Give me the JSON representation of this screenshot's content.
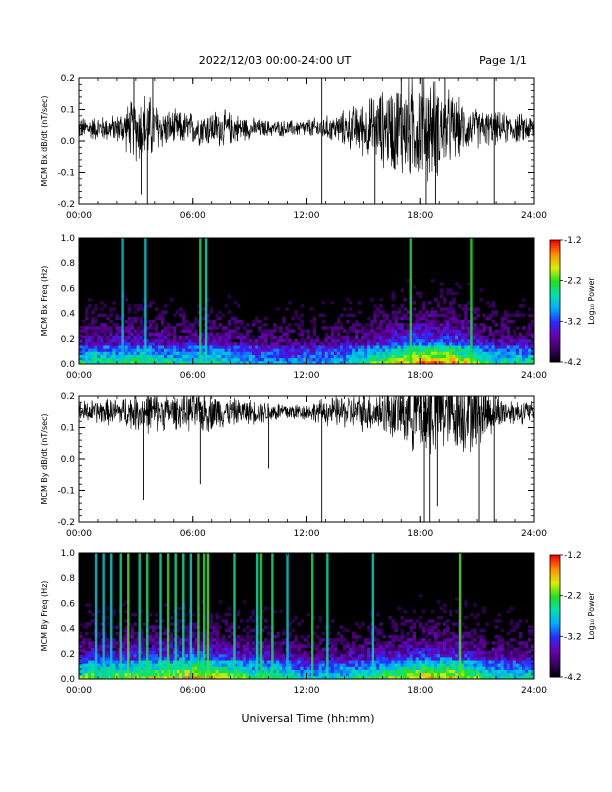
{
  "header": {
    "title": "2022/12/03  00:00-24:00 UT",
    "page": "Page 1/1"
  },
  "footer": {
    "xlabel": "Universal Time (hh:mm)"
  },
  "colors": {
    "trace": "#000000",
    "background": "#000000",
    "colormap": [
      "#000000",
      "#3a0060",
      "#6a00b0",
      "#2a2aff",
      "#00aaff",
      "#00e0b0",
      "#20e020",
      "#d8f000",
      "#ff9000",
      "#ff0000"
    ]
  },
  "chart_data": [
    {
      "type": "line",
      "id": "bx-dbdt",
      "ylabel": "MCM Bx dB/dt (nT/sec)",
      "xlim": [
        0,
        24
      ],
      "ylim": [
        -0.2,
        0.2
      ],
      "x_ticks": [
        0,
        6,
        12,
        18,
        24
      ],
      "x_tick_labels": [
        "00:00",
        "06:00",
        "12:00",
        "18:00",
        "24:00"
      ],
      "y_ticks": [
        -0.2,
        -0.1,
        0.0,
        0.1,
        0.2
      ],
      "y_tick_labels": [
        "-0.2",
        "-0.1",
        "0.0",
        "0.1",
        "0.2"
      ],
      "grid": false,
      "series": [
        {
          "baseline": 0.04,
          "envelope_hours": [
            0,
            2,
            3,
            3.5,
            4.5,
            6,
            7.5,
            9,
            10,
            11.5,
            12.5,
            13.5,
            15,
            16,
            17.2,
            18.5,
            19.5,
            20.5,
            22,
            24
          ],
          "envelope_amplitude": [
            0.04,
            0.05,
            0.12,
            0.14,
            0.07,
            0.06,
            0.07,
            0.04,
            0.03,
            0.03,
            0.04,
            0.05,
            0.1,
            0.14,
            0.19,
            0.2,
            0.14,
            0.08,
            0.06,
            0.05
          ],
          "spikes": [
            {
              "hour": 3.6,
              "value": -0.2
            },
            {
              "hour": 3.3,
              "value": -0.17
            },
            {
              "hour": 2.9,
              "value": 0.2
            },
            {
              "hour": 3.9,
              "value": 0.2
            },
            {
              "hour": 12.8,
              "value": -0.2
            },
            {
              "hour": 12.8,
              "value": 0.2
            },
            {
              "hour": 15.6,
              "value": -0.2
            },
            {
              "hour": 17.0,
              "value": 0.2
            },
            {
              "hour": 18.3,
              "value": -0.2
            },
            {
              "hour": 18.8,
              "value": -0.2
            },
            {
              "hour": 21.9,
              "value": -0.2
            },
            {
              "hour": 21.9,
              "value": 0.2
            },
            {
              "hour": 19.3,
              "value": 0.2
            },
            {
              "hour": 18.1,
              "value": 0.2
            }
          ]
        }
      ]
    },
    {
      "type": "heatmap",
      "id": "bx-freq",
      "ylabel": "MCM Bx Freq (Hz)",
      "xlim": [
        0,
        24
      ],
      "ylim": [
        0.0,
        1.0
      ],
      "x_ticks": [
        0,
        6,
        12,
        18,
        24
      ],
      "x_tick_labels": [
        "00:00",
        "06:00",
        "12:00",
        "18:00",
        "24:00"
      ],
      "y_ticks": [
        0.0,
        0.2,
        0.4,
        0.6,
        0.8,
        1.0
      ],
      "y_tick_labels": [
        "0.0",
        "0.2",
        "0.4",
        "0.6",
        "0.8",
        "1.0"
      ],
      "colorbar": {
        "label": "Log₁₀ Power",
        "range": [
          -4.2,
          -1.2
        ],
        "ticks": [
          -1.2,
          -2.2,
          -3.2,
          -4.2
        ],
        "tick_labels": [
          "-1.2",
          "-2.2",
          "-3.2",
          "-4.2"
        ]
      },
      "activity_hours": [
        0,
        2,
        3.5,
        5,
        6.5,
        9,
        12,
        14,
        16,
        18,
        20,
        21.5,
        24
      ],
      "activity_level": [
        0.55,
        0.55,
        0.6,
        0.5,
        0.55,
        0.45,
        0.4,
        0.45,
        0.65,
        0.85,
        0.8,
        0.55,
        0.5
      ],
      "bright_lines_hours": [
        3.5,
        6.4,
        6.7,
        2.3,
        17.5,
        20.7
      ]
    },
    {
      "type": "line",
      "id": "by-dbdt",
      "ylabel": "MCM By dB/dt (nT/sec)",
      "xlim": [
        0,
        24
      ],
      "ylim": [
        -0.2,
        0.2
      ],
      "x_ticks": [
        0,
        6,
        12,
        18,
        24
      ],
      "x_tick_labels": [
        "00:00",
        "06:00",
        "12:00",
        "18:00",
        "24:00"
      ],
      "y_ticks": [
        -0.2,
        -0.1,
        0.0,
        0.1,
        0.2
      ],
      "y_tick_labels": [
        "-0.2",
        "-0.1",
        "0.0",
        "0.1",
        "0.2"
      ],
      "grid": false,
      "series": [
        {
          "baseline": 0.15,
          "envelope_hours": [
            0,
            2,
            3.5,
            5,
            6.5,
            8,
            10,
            12,
            13,
            14,
            16,
            17.5,
            18.5,
            19.5,
            20.5,
            21.5,
            22.5,
            24
          ],
          "envelope_amplitude": [
            0.04,
            0.05,
            0.08,
            0.06,
            0.08,
            0.05,
            0.04,
            0.03,
            0.05,
            0.06,
            0.08,
            0.14,
            0.18,
            0.14,
            0.16,
            0.1,
            0.05,
            0.04
          ],
          "spikes": [
            {
              "hour": 3.4,
              "value": -0.13
            },
            {
              "hour": 6.4,
              "value": -0.08
            },
            {
              "hour": 12.8,
              "value": -0.2
            },
            {
              "hour": 18.2,
              "value": -0.2
            },
            {
              "hour": 18.5,
              "value": -0.2
            },
            {
              "hour": 18.9,
              "value": -0.15
            },
            {
              "hour": 21.1,
              "value": -0.2
            },
            {
              "hour": 21.9,
              "value": -0.2
            },
            {
              "hour": 10.0,
              "value": -0.03
            }
          ]
        }
      ]
    },
    {
      "type": "heatmap",
      "id": "by-freq",
      "ylabel": "MCM By Freq (Hz)",
      "xlim": [
        0,
        24
      ],
      "ylim": [
        0.0,
        1.0
      ],
      "x_ticks": [
        0,
        6,
        12,
        18,
        24
      ],
      "x_tick_labels": [
        "00:00",
        "06:00",
        "12:00",
        "18:00",
        "24:00"
      ],
      "y_ticks": [
        0.0,
        0.2,
        0.4,
        0.6,
        0.8,
        1.0
      ],
      "y_tick_labels": [
        "0.0",
        "0.2",
        "0.4",
        "0.6",
        "0.8",
        "1.0"
      ],
      "colorbar": {
        "label": "Log₁₀ Power",
        "range": [
          -4.2,
          -1.2
        ],
        "ticks": [
          -1.2,
          -2.2,
          -3.2,
          -4.2
        ],
        "tick_labels": [
          "-1.2",
          "-2.2",
          "-3.2",
          "-4.2"
        ]
      },
      "activity_hours": [
        0,
        2,
        4,
        6,
        7,
        9,
        10.5,
        12,
        14,
        16,
        18,
        20,
        21.5,
        24
      ],
      "activity_level": [
        0.65,
        0.65,
        0.7,
        0.8,
        0.75,
        0.6,
        0.6,
        0.45,
        0.5,
        0.6,
        0.75,
        0.75,
        0.55,
        0.5
      ],
      "bright_lines_hours": [
        0.9,
        1.3,
        1.7,
        2.2,
        2.6,
        3.2,
        3.6,
        4.3,
        4.7,
        5.1,
        5.5,
        5.9,
        6.3,
        6.6,
        6.8,
        8.2,
        9.4,
        9.6,
        10.2,
        11.0,
        12.3,
        13.1,
        15.5,
        20.1
      ]
    }
  ]
}
